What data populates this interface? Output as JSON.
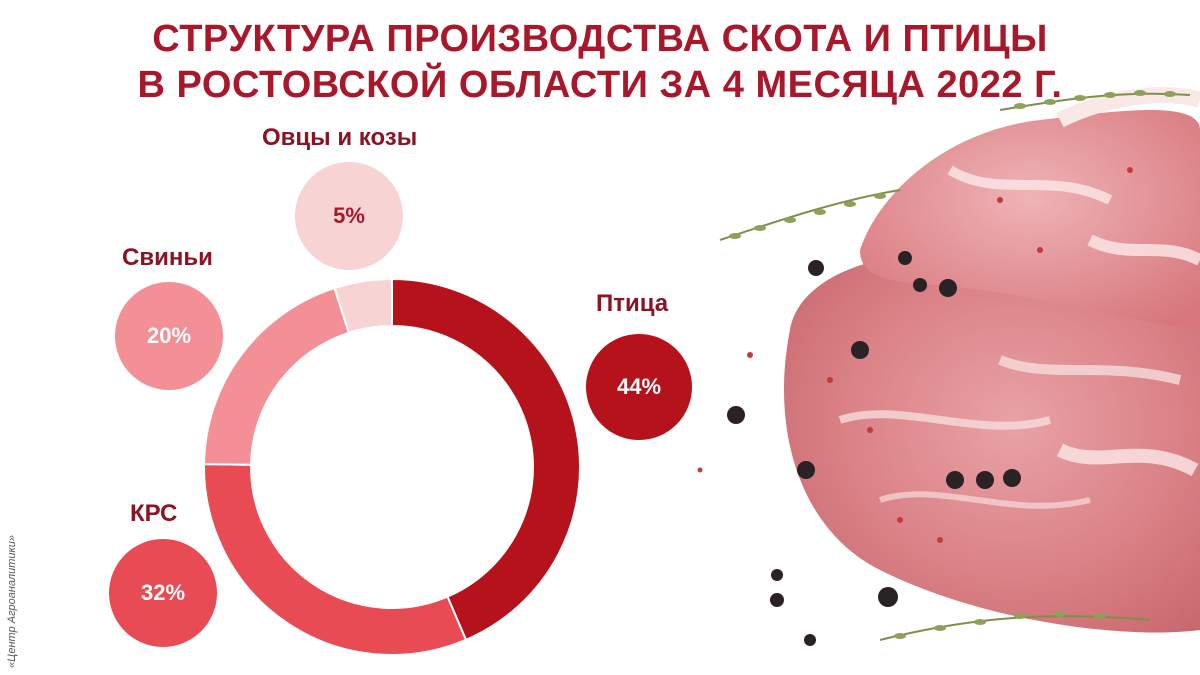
{
  "title_line1": "СТРУКТУРА ПРОИЗВОДСТВА СКОТА И ПТИЦЫ",
  "title_line2": "В РОСТОВСКОЙ ОБЛАСТИ ЗА 4 МЕСЯЦА 2022 Г.",
  "credit": "«Центр Агроаналитики»",
  "colors": {
    "title": "#a8182a",
    "poultry": "#b5121b",
    "cattle": "#e94b55",
    "pigs": "#f29095",
    "sheep_goats": "#f8d3d4"
  },
  "chart_data": {
    "type": "pie",
    "donut": true,
    "title": "СТРУКТУРА ПРОИЗВОДСТВА СКОТА И ПТИЦЫ В РОСТОВСКОЙ ОБЛАСТИ ЗА 4 МЕСЯЦА 2022 Г.",
    "categories": [
      "Птица",
      "КРС",
      "Свиньи",
      "Овцы и козы"
    ],
    "values": [
      44,
      32,
      20,
      5
    ],
    "labels": [
      "44%",
      "32%",
      "20%",
      "5%"
    ],
    "colors": [
      "#b5121b",
      "#e94b55",
      "#f29095",
      "#f8d3d4"
    ]
  }
}
